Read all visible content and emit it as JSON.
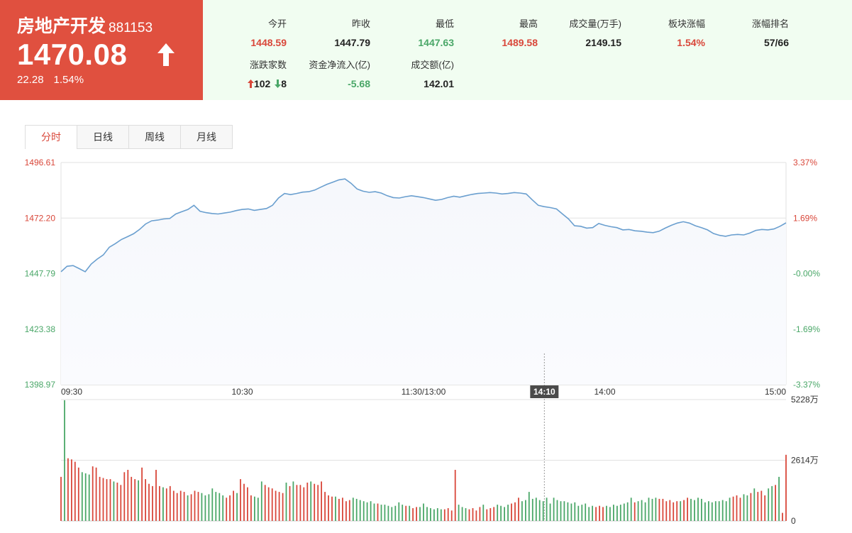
{
  "header": {
    "sector_name": "房地产开发",
    "sector_code": "881153",
    "last_price": "1470.08",
    "change": "22.28",
    "change_pct": "1.54%",
    "direction": "up"
  },
  "stats": [
    {
      "label": "今开",
      "value": "1448.59",
      "color": "#d9473a"
    },
    {
      "label": "昨收",
      "value": "1447.79",
      "color": "#222222"
    },
    {
      "label": "最低",
      "value": "1447.63",
      "color": "#4aa768"
    },
    {
      "label": "最高",
      "value": "1489.58",
      "color": "#d9473a"
    },
    {
      "label": "成交量(万手)",
      "value": "2149.15",
      "color": "#222222"
    },
    {
      "label": "板块涨幅",
      "value": "1.54%",
      "color": "#d9473a"
    },
    {
      "label": "涨幅排名",
      "value": "57/66",
      "color": "#222222"
    }
  ],
  "breadth": {
    "label": "涨跌家数",
    "up_count": "102",
    "down_count": "8"
  },
  "net_inflow": {
    "label": "资金净流入(亿)",
    "value": "-5.68",
    "color": "#4aa768"
  },
  "turnover": {
    "label": "成交额(亿)",
    "value": "142.01",
    "color": "#222222"
  },
  "tabs": [
    {
      "label": "分时",
      "active": true
    },
    {
      "label": "日线",
      "active": false
    },
    {
      "label": "周线",
      "active": false
    },
    {
      "label": "月线",
      "active": false
    }
  ],
  "colors": {
    "up": "#d9473a",
    "down": "#4aa768",
    "line": "#6a9fcf",
    "header_bg": "#e0503f",
    "stats_bg": "#f1fdf1"
  },
  "chart_data": [
    {
      "type": "line",
      "title": "",
      "x_tick_labels": [
        "09:30",
        "10:30",
        "11:30/13:00",
        "14:00",
        "15:00"
      ],
      "y_tick_labels": [
        "1496.61",
        "1472.20",
        "1447.79",
        "1423.38",
        "1398.97"
      ],
      "y2_tick_labels": [
        "3.37%",
        "1.69%",
        "-0.00%",
        "-1.69%",
        "-3.37%"
      ],
      "ylim": [
        1398.97,
        1496.61
      ],
      "prev_close": 1447.79,
      "crosshair_label": "14:10",
      "crosshair_minute": 160,
      "minutes_total": 240,
      "points": [
        [
          0,
          1448.6
        ],
        [
          2,
          1451.0
        ],
        [
          4,
          1451.3
        ],
        [
          6,
          1450.0
        ],
        [
          8,
          1448.6
        ],
        [
          10,
          1452.0
        ],
        [
          12,
          1454.2
        ],
        [
          14,
          1456.0
        ],
        [
          16,
          1459.4
        ],
        [
          18,
          1461.0
        ],
        [
          20,
          1462.8
        ],
        [
          22,
          1464.0
        ],
        [
          24,
          1465.3
        ],
        [
          26,
          1467.2
        ],
        [
          28,
          1469.6
        ],
        [
          30,
          1471.0
        ],
        [
          32,
          1471.3
        ],
        [
          34,
          1471.8
        ],
        [
          36,
          1472.0
        ],
        [
          38,
          1474.0
        ],
        [
          40,
          1475.0
        ],
        [
          42,
          1476.0
        ],
        [
          44,
          1477.8
        ],
        [
          46,
          1475.2
        ],
        [
          48,
          1474.6
        ],
        [
          50,
          1474.2
        ],
        [
          52,
          1474.0
        ],
        [
          54,
          1474.4
        ],
        [
          56,
          1474.8
        ],
        [
          58,
          1475.5
        ],
        [
          60,
          1476.0
        ],
        [
          62,
          1476.2
        ],
        [
          64,
          1475.6
        ],
        [
          66,
          1476.0
        ],
        [
          68,
          1476.4
        ],
        [
          70,
          1477.8
        ],
        [
          72,
          1481.0
        ],
        [
          74,
          1483.0
        ],
        [
          76,
          1482.5
        ],
        [
          78,
          1483.0
        ],
        [
          80,
          1483.6
        ],
        [
          82,
          1483.8
        ],
        [
          84,
          1484.5
        ],
        [
          86,
          1485.8
        ],
        [
          88,
          1487.0
        ],
        [
          90,
          1488.0
        ],
        [
          92,
          1489.0
        ],
        [
          94,
          1489.4
        ],
        [
          96,
          1487.5
        ],
        [
          98,
          1485.0
        ],
        [
          100,
          1484.0
        ],
        [
          102,
          1483.5
        ],
        [
          104,
          1483.8
        ],
        [
          106,
          1483.2
        ],
        [
          108,
          1482.0
        ],
        [
          110,
          1481.2
        ],
        [
          112,
          1481.0
        ],
        [
          114,
          1481.6
        ],
        [
          116,
          1482.0
        ],
        [
          118,
          1481.6
        ],
        [
          120,
          1481.2
        ],
        [
          122,
          1480.6
        ],
        [
          124,
          1480.0
        ],
        [
          126,
          1480.4
        ],
        [
          128,
          1481.2
        ],
        [
          130,
          1481.8
        ],
        [
          132,
          1481.4
        ],
        [
          134,
          1482.0
        ],
        [
          136,
          1482.6
        ],
        [
          138,
          1483.0
        ],
        [
          140,
          1483.2
        ],
        [
          142,
          1483.4
        ],
        [
          144,
          1483.2
        ],
        [
          146,
          1482.8
        ],
        [
          148,
          1483.0
        ],
        [
          150,
          1483.4
        ],
        [
          152,
          1483.2
        ],
        [
          154,
          1482.8
        ],
        [
          156,
          1480.2
        ],
        [
          158,
          1477.8
        ],
        [
          160,
          1477.2
        ],
        [
          162,
          1476.8
        ],
        [
          164,
          1476.2
        ],
        [
          166,
          1474.0
        ],
        [
          168,
          1471.8
        ],
        [
          170,
          1468.8
        ],
        [
          172,
          1468.6
        ],
        [
          174,
          1467.8
        ],
        [
          176,
          1468.0
        ],
        [
          178,
          1469.8
        ],
        [
          180,
          1469.0
        ],
        [
          182,
          1468.4
        ],
        [
          184,
          1468.0
        ],
        [
          186,
          1467.0
        ],
        [
          188,
          1467.2
        ],
        [
          190,
          1466.6
        ],
        [
          192,
          1466.4
        ],
        [
          194,
          1466.0
        ],
        [
          196,
          1465.8
        ],
        [
          198,
          1466.4
        ],
        [
          200,
          1467.8
        ],
        [
          202,
          1469.0
        ],
        [
          204,
          1470.0
        ],
        [
          206,
          1470.6
        ],
        [
          208,
          1470.0
        ],
        [
          210,
          1468.8
        ],
        [
          212,
          1468.0
        ],
        [
          214,
          1467.0
        ],
        [
          216,
          1465.4
        ],
        [
          218,
          1464.6
        ],
        [
          220,
          1464.2
        ],
        [
          222,
          1464.8
        ],
        [
          224,
          1465.0
        ],
        [
          226,
          1464.8
        ],
        [
          228,
          1465.6
        ],
        [
          230,
          1466.8
        ],
        [
          232,
          1467.2
        ],
        [
          234,
          1467.0
        ],
        [
          236,
          1467.4
        ],
        [
          238,
          1468.6
        ],
        [
          240,
          1470.08
        ]
      ]
    },
    {
      "type": "bar",
      "title": "",
      "y_tick_labels": [
        "5228万",
        "2614万",
        "0"
      ],
      "ylim": [
        0,
        5228
      ],
      "unit": "万",
      "values": [
        1900,
        5200,
        2700,
        2650,
        2550,
        2300,
        2100,
        2050,
        2000,
        2350,
        2300,
        1900,
        1850,
        1800,
        1800,
        1700,
        1650,
        1550,
        2100,
        2200,
        1900,
        1800,
        1750,
        2300,
        1800,
        1600,
        1500,
        2200,
        1500,
        1450,
        1400,
        1500,
        1300,
        1200,
        1300,
        1250,
        1100,
        1150,
        1300,
        1250,
        1200,
        1100,
        1150,
        1400,
        1250,
        1200,
        1100,
        1000,
        1100,
        1300,
        1200,
        1800,
        1600,
        1450,
        1100,
        1050,
        1000,
        1700,
        1550,
        1450,
        1400,
        1300,
        1250,
        1200,
        1650,
        1500,
        1700,
        1550,
        1550,
        1450,
        1650,
        1700,
        1600,
        1550,
        1700,
        1250,
        1100,
        1050,
        1050,
        950,
        1000,
        850,
        900,
        1000,
        950,
        900,
        850,
        800,
        850,
        750,
        750,
        700,
        700,
        650,
        600,
        650,
        800,
        700,
        650,
        650,
        550,
        600,
        600,
        750,
        600,
        550,
        500,
        550,
        500,
        500,
        550,
        450,
        2200,
        700,
        600,
        550,
        500,
        550,
        450,
        600,
        700,
        500,
        550,
        600,
        700,
        650,
        600,
        700,
        750,
        800,
        1000,
        850,
        900,
        1250,
        950,
        1000,
        900,
        850,
        1000,
        750,
        1000,
        900,
        850,
        850,
        800,
        750,
        800,
        650,
        700,
        750,
        600,
        650,
        600,
        650,
        600,
        650,
        600,
        700,
        650,
        700,
        750,
        800,
        1000,
        800,
        850,
        900,
        800,
        1000,
        950,
        1000,
        950,
        950,
        850,
        900,
        800,
        850,
        850,
        900,
        1000,
        950,
        900,
        1000,
        950,
        800,
        850,
        800,
        850,
        850,
        900,
        850,
        1000,
        1050,
        1100,
        1000,
        1150,
        1100,
        1200,
        1400,
        1250,
        1300,
        1100,
        1400,
        1500,
        1550,
        1900,
        350,
        2850
      ]
    }
  ]
}
